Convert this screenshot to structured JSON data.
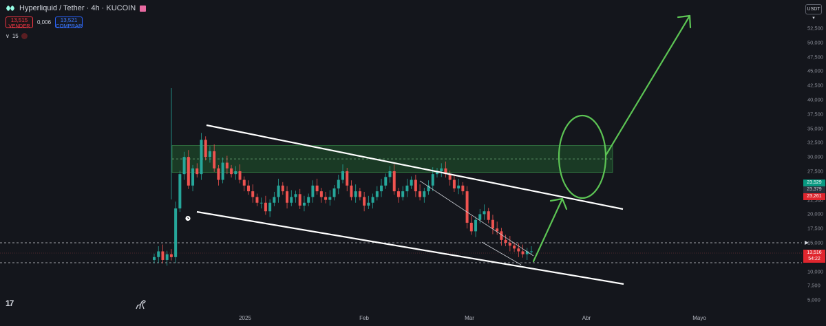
{
  "header": {
    "title": "Hyperliquid / Tether · 4h · KUCOIN",
    "sell_price": "13,515",
    "sell_label": "VENDER",
    "spread": "0,006",
    "buy_price": "13,521",
    "buy_label": "COMPRAR",
    "indicator_count": "15"
  },
  "axis": {
    "currency": "USDT",
    "price_labels": [
      "52,500",
      "50,000",
      "47,500",
      "45,000",
      "42,500",
      "40,000",
      "37,500",
      "35,000",
      "32,500",
      "30,000",
      "27,500",
      "22,500",
      "20,000",
      "17,500",
      "15,000",
      "12,500",
      "10,000",
      "7,500",
      "5,000"
    ],
    "tag_top": "23,529",
    "tag_mid": "23,379",
    "tag_low": "23,261",
    "current_price": "13,516",
    "countdown": "54:22"
  },
  "time_axis": {
    "labels": [
      "2025",
      "Feb",
      "Mar",
      "Abr",
      "Mayo"
    ]
  },
  "colors": {
    "background": "#14161c",
    "candle_up": "#26a69a",
    "candle_down": "#ef5350",
    "zone_fill": "#1f5a2d",
    "arrow": "#5cc454",
    "channel_line": "#ffffff"
  },
  "chart_data": {
    "type": "candlestick",
    "title": "Hyperliquid / Tether · 4h · KUCOIN",
    "ylim": [
      3.5,
      56
    ],
    "x_labels": [
      "2025",
      "Feb",
      "Mar",
      "Abr",
      "Mayo"
    ],
    "series": [
      {
        "name": "Hyperliquid / Tether",
        "closes": [
          12.5,
          13.5,
          12,
          13,
          12.5,
          21,
          27,
          30,
          25,
          28,
          27,
          33,
          30,
          31,
          28,
          26,
          29,
          28,
          27,
          27.5,
          26,
          25,
          24,
          23,
          22,
          22,
          20.5,
          22,
          23,
          25,
          24,
          22,
          23,
          23.5,
          21.5,
          22,
          23,
          25,
          24,
          23,
          22.5,
          23,
          24.5,
          26,
          27.5,
          25,
          23,
          24,
          23,
          21.5,
          22,
          23,
          24,
          25,
          26.5,
          27.5,
          24,
          23,
          24,
          25,
          26,
          24,
          23,
          24,
          25,
          27,
          27.5,
          28,
          27,
          26,
          24.5,
          25,
          24,
          18.5,
          17,
          19,
          20,
          20.5,
          19,
          17.5,
          17,
          15.5,
          15,
          14.5,
          14,
          13.5,
          13,
          13.5,
          13.5
        ]
      }
    ],
    "annotations": {
      "resistance_zone": [
        27.3,
        32
      ],
      "horizontal_levels": [
        15.3,
        13.8,
        11.7
      ],
      "current_price": 13.516
    }
  }
}
